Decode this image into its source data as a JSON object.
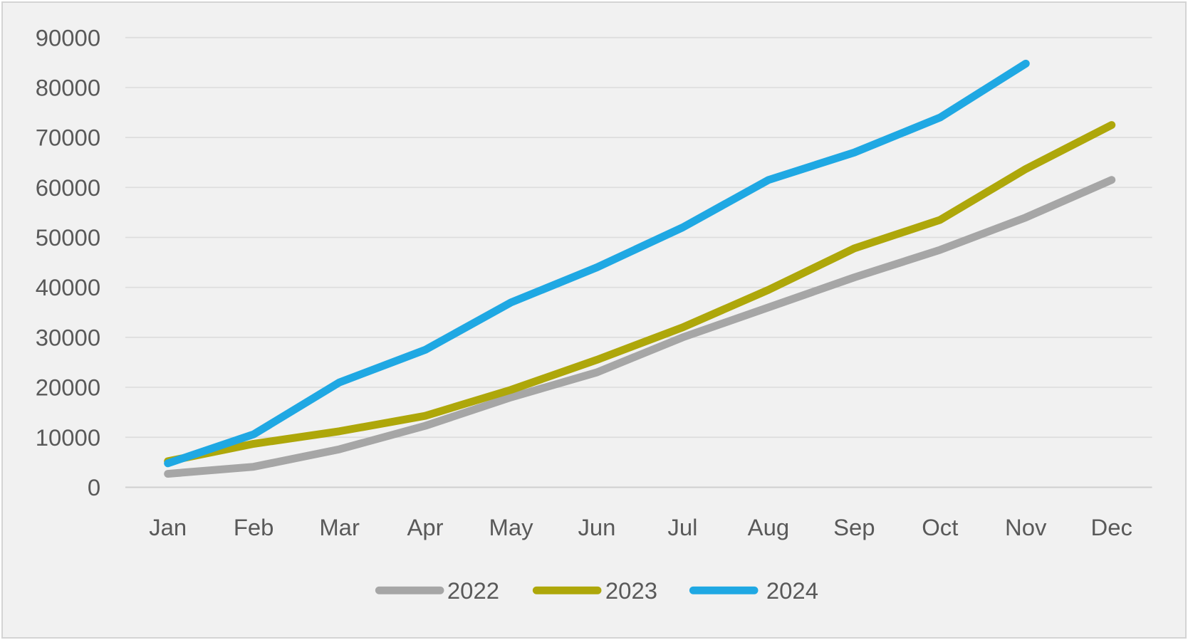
{
  "chart_data": {
    "type": "line",
    "title": "",
    "xlabel": "",
    "ylabel": "",
    "categories": [
      "Jan",
      "Feb",
      "Mar",
      "Apr",
      "May",
      "Jun",
      "Jul",
      "Aug",
      "Sep",
      "Oct",
      "Nov",
      "Dec"
    ],
    "series": [
      {
        "name": "2022",
        "color": "#A6A6A6",
        "values": [
          2700,
          4100,
          7600,
          12300,
          18000,
          23000,
          30000,
          36000,
          42000,
          47500,
          54000,
          61500
        ]
      },
      {
        "name": "2023",
        "color": "#AEA70A",
        "values": [
          5200,
          8700,
          11200,
          14300,
          19500,
          25500,
          32000,
          39500,
          47800,
          53500,
          63700,
          72500
        ]
      },
      {
        "name": "2024",
        "color": "#1FA8E3",
        "values": [
          4800,
          10600,
          21000,
          27500,
          37000,
          44000,
          52000,
          61500,
          67000,
          74000,
          84800,
          null
        ]
      }
    ],
    "ylim": [
      0,
      90000
    ],
    "y_ticks": [
      0,
      10000,
      20000,
      30000,
      40000,
      50000,
      60000,
      70000,
      80000,
      90000
    ],
    "grid": true,
    "legend_position": "bottom",
    "legend_labels": [
      "2022",
      "2023",
      "2024"
    ]
  },
  "colors": {
    "background": "#F1F1F1",
    "frame_border": "#D4D4D4",
    "gridline": "#DDDDDD",
    "axis_line": "#CFCFCF",
    "tick_text": "#595959"
  }
}
